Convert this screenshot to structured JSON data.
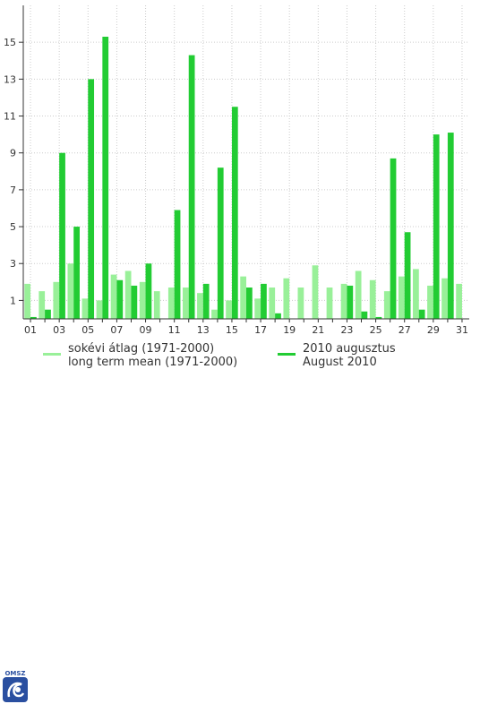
{
  "chart_data": {
    "type": "bar",
    "categories": [
      "01",
      "02",
      "03",
      "04",
      "05",
      "06",
      "07",
      "08",
      "09",
      "10",
      "11",
      "12",
      "13",
      "14",
      "15",
      "16",
      "17",
      "18",
      "19",
      "20",
      "21",
      "22",
      "23",
      "24",
      "25",
      "26",
      "27",
      "28",
      "29",
      "30",
      "31"
    ],
    "x_tick_labels": [
      "01",
      "03",
      "05",
      "07",
      "09",
      "11",
      "13",
      "15",
      "17",
      "19",
      "21",
      "23",
      "25",
      "27",
      "29",
      "31"
    ],
    "y_tick_labels": [
      "1",
      "3",
      "5",
      "7",
      "9",
      "11",
      "13",
      "15"
    ],
    "ylim": [
      0,
      17
    ],
    "grid": true,
    "legend_placement": "bottom",
    "series": [
      {
        "name": "sokévi átlag (1971-2000)",
        "name_en": "long term mean (1971-2000)",
        "color": "#99f099",
        "values": [
          1.9,
          1.5,
          2.0,
          3.0,
          1.1,
          1.0,
          2.4,
          2.6,
          2.0,
          1.5,
          1.7,
          1.7,
          1.4,
          0.5,
          1.0,
          2.3,
          1.1,
          1.7,
          2.2,
          1.7,
          2.9,
          1.7,
          1.9,
          2.6,
          2.1,
          1.5,
          2.3,
          2.7,
          1.8,
          2.2,
          1.9
        ]
      },
      {
        "name": "2010 augusztus",
        "name_en": "August 2010",
        "color": "#22cc33",
        "values": [
          0.1,
          0.5,
          9.0,
          5.0,
          13.0,
          15.3,
          2.1,
          1.8,
          3.0,
          0.0,
          5.9,
          14.3,
          1.9,
          8.2,
          11.5,
          1.7,
          1.9,
          0.3,
          0.0,
          0.0,
          0.0,
          0.0,
          1.8,
          0.4,
          0.1,
          8.7,
          4.7,
          0.5,
          10.0,
          10.1,
          0.0
        ]
      }
    ]
  },
  "legend": {
    "mean_label_hu": "sokévi átlag (1971-2000)",
    "mean_label_en": "long term mean (1971-2000)",
    "current_label_hu": "2010 augusztus",
    "current_label_en": "August 2010"
  },
  "logo": {
    "text": "OMSZ"
  }
}
